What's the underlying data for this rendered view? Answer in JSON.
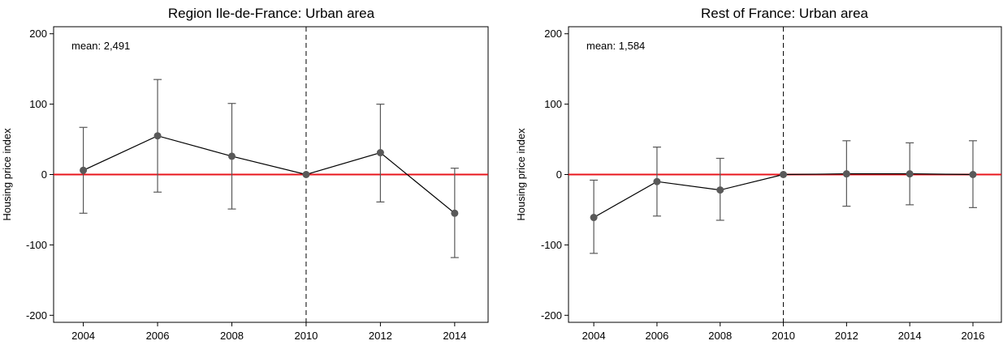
{
  "chart_data": [
    {
      "type": "line",
      "title": "Region Ile-de-France: Urban area",
      "ylabel": "Housing price index",
      "xlabel": "",
      "annotation": "mean: 2,491",
      "x": [
        2004,
        2006,
        2008,
        2010,
        2012,
        2014
      ],
      "xlim": [
        2003.2,
        2014.9
      ],
      "ylim": [
        -210,
        210
      ],
      "yticks": [
        200,
        100,
        0,
        -100,
        -200
      ],
      "xticks": [
        2004,
        2006,
        2008,
        2010,
        2012,
        2014
      ],
      "reference_year": 2010,
      "zero_line_color": "#e8141c",
      "point_color": "#595959",
      "series": [
        {
          "values": [
            6,
            55,
            26,
            0,
            31,
            -55
          ],
          "ci_low": [
            -55,
            -25,
            -49,
            0,
            -39,
            -118
          ],
          "ci_high": [
            67,
            135,
            101,
            0,
            100,
            9
          ]
        }
      ],
      "grid": false
    },
    {
      "type": "line",
      "title": "Rest of France: Urban area",
      "ylabel": "Housing price index",
      "xlabel": "",
      "annotation": "mean: 1,584",
      "x": [
        2004,
        2006,
        2008,
        2010,
        2012,
        2014,
        2016
      ],
      "xlim": [
        2003.2,
        2016.9
      ],
      "ylim": [
        -210,
        210
      ],
      "yticks": [
        200,
        100,
        0,
        -100,
        -200
      ],
      "xticks": [
        2004,
        2006,
        2008,
        2010,
        2012,
        2014,
        2016
      ],
      "reference_year": 2010,
      "zero_line_color": "#e8141c",
      "point_color": "#595959",
      "series": [
        {
          "values": [
            -61,
            -10,
            -22,
            0,
            1,
            1,
            0
          ],
          "ci_low": [
            -112,
            -59,
            -65,
            0,
            -45,
            -43,
            -47
          ],
          "ci_high": [
            -8,
            39,
            23,
            0,
            48,
            45,
            48
          ]
        }
      ],
      "grid": false
    }
  ]
}
